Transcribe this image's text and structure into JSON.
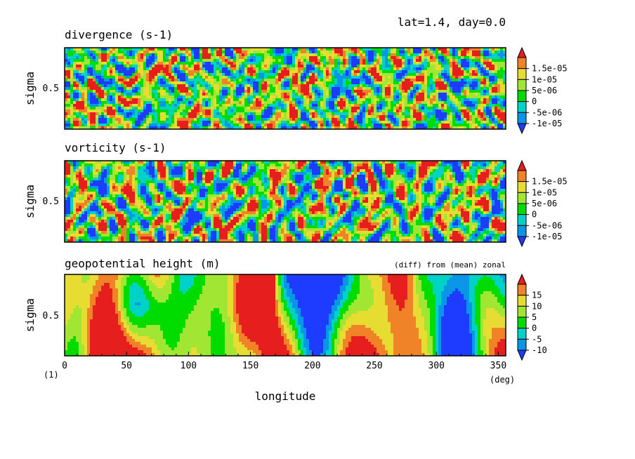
{
  "header": {
    "label": "lat=1.4, day=0.0"
  },
  "colors": {
    "levels": [
      "#1e3cff",
      "#0a96e6",
      "#00d2c8",
      "#00dc00",
      "#a0e632",
      "#e6dc32",
      "#f08228",
      "#e61e1e"
    ],
    "frame": "#000000"
  },
  "x_axis": {
    "label": "longitude",
    "unit": "(deg)",
    "ticks": [
      "0",
      "50",
      "100",
      "150",
      "200",
      "250",
      "300",
      "350"
    ],
    "range": [
      0,
      356
    ]
  },
  "corner_label": "(1)",
  "chart_data": [
    {
      "type": "heatmap",
      "title": "divergence (s-1)",
      "ylabel": "sigma",
      "ytick": "0.5",
      "xlabel": "",
      "colorbar": [
        "1.5e-05",
        "1e-05",
        "5e-06",
        "0",
        "-5e-06",
        "-1e-05"
      ],
      "levels": [
        -1.5e-05,
        -1e-05,
        -5e-06,
        0,
        5e-06,
        1e-05,
        1.5e-05
      ],
      "xlim": [
        0,
        356
      ],
      "ylim": [
        0,
        1
      ]
    },
    {
      "type": "heatmap",
      "title": "vorticity (s-1)",
      "ylabel": "sigma",
      "ytick": "0.5",
      "xlabel": "",
      "colorbar": [
        "1.5e-05",
        "1e-05",
        "5e-06",
        "0",
        "-5e-06",
        "-1e-05"
      ],
      "levels": [
        -1.5e-05,
        -1e-05,
        -5e-06,
        0,
        5e-06,
        1e-05,
        1.5e-05
      ],
      "xlim": [
        0,
        356
      ],
      "ylim": [
        0,
        1
      ]
    },
    {
      "type": "heatmap",
      "title": "geopotential height (m)",
      "subtitle": "(diff) from (mean) zonal",
      "ylabel": "sigma",
      "ytick": "0.5",
      "xlabel": "longitude",
      "colorbar": [
        "15",
        "10",
        "5",
        "0",
        "-5",
        "-10"
      ],
      "levels": [
        -15,
        -10,
        -5,
        0,
        5,
        10,
        15
      ],
      "xlim": [
        0,
        356
      ],
      "ylim": [
        0,
        1
      ]
    }
  ]
}
